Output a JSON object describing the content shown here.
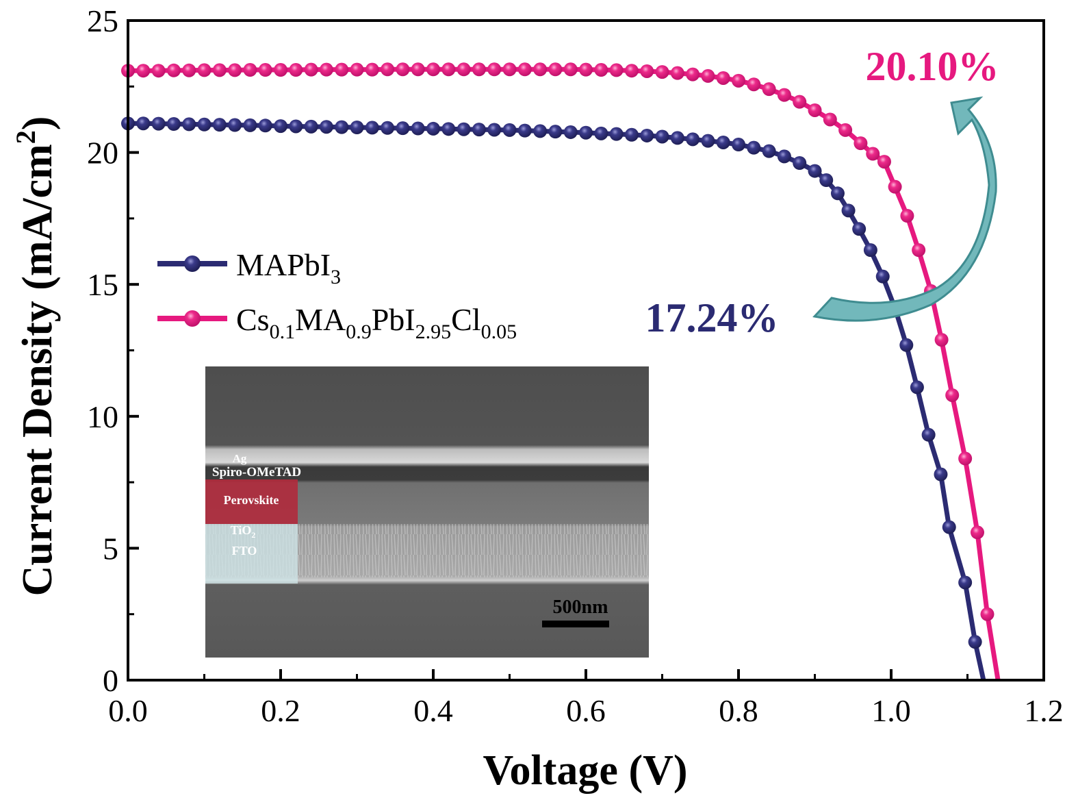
{
  "chart_data": {
    "type": "line",
    "xlabel": "Voltage (V)",
    "ylabel": "Current Density (mA/cm²)",
    "ylabel_parts": {
      "main": "Current Density (mA/cm",
      "sup": "2",
      "end": ")"
    },
    "xlim": [
      0,
      1.2
    ],
    "ylim": [
      0,
      25
    ],
    "xticks": [
      "0.0",
      "0.2",
      "0.4",
      "0.6",
      "0.8",
      "1.0",
      "1.2"
    ],
    "yticks": [
      "0",
      "5",
      "10",
      "15",
      "20",
      "25"
    ],
    "grid": false,
    "legend_placement": "center-left",
    "series": [
      {
        "name": "MAPbI3",
        "legend": [
          {
            "t": "MAPbI",
            "s": false
          },
          {
            "t": "3",
            "s": true
          }
        ],
        "color": "#2b2b72",
        "x": [
          0,
          0.02,
          0.04,
          0.06,
          0.08,
          0.1,
          0.12,
          0.14,
          0.16,
          0.18,
          0.2,
          0.22,
          0.24,
          0.26,
          0.28,
          0.3,
          0.32,
          0.34,
          0.36,
          0.38,
          0.4,
          0.42,
          0.44,
          0.46,
          0.48,
          0.5,
          0.52,
          0.54,
          0.56,
          0.58,
          0.6,
          0.62,
          0.64,
          0.66,
          0.68,
          0.7,
          0.72,
          0.74,
          0.76,
          0.78,
          0.8,
          0.82,
          0.84,
          0.86,
          0.88,
          0.9,
          0.915,
          0.93,
          0.944,
          0.958,
          0.973,
          0.989,
          1.005,
          1.02,
          1.034,
          1.049,
          1.065,
          1.076,
          1.097,
          1.11,
          1.121
        ],
        "y": [
          21.1,
          21.1,
          21.09,
          21.08,
          21.07,
          21.06,
          21.05,
          21.04,
          21.03,
          21.02,
          21.0,
          20.99,
          20.98,
          20.97,
          20.96,
          20.95,
          20.94,
          20.93,
          20.92,
          20.91,
          20.9,
          20.89,
          20.88,
          20.87,
          20.86,
          20.85,
          20.83,
          20.81,
          20.79,
          20.77,
          20.75,
          20.72,
          20.7,
          20.67,
          20.64,
          20.6,
          20.55,
          20.5,
          20.44,
          20.38,
          20.3,
          20.18,
          20.05,
          19.85,
          19.6,
          19.3,
          18.95,
          18.45,
          17.8,
          17.1,
          16.3,
          15.3,
          14.1,
          12.7,
          11.1,
          9.3,
          7.8,
          5.8,
          3.7,
          1.45,
          0
        ]
      },
      {
        "name": "Cs0.1MA0.9PbI2.95Cl0.05",
        "legend": [
          {
            "t": "Cs",
            "s": false
          },
          {
            "t": "0.1",
            "s": true
          },
          {
            "t": "MA",
            "s": false
          },
          {
            "t": "0.9",
            "s": true
          },
          {
            "t": "PbI",
            "s": false
          },
          {
            "t": "2.95",
            "s": true
          },
          {
            "t": "Cl",
            "s": false
          },
          {
            "t": "0.05",
            "s": true
          }
        ],
        "color": "#e6197f",
        "x": [
          0,
          0.02,
          0.04,
          0.06,
          0.08,
          0.1,
          0.12,
          0.14,
          0.16,
          0.18,
          0.2,
          0.22,
          0.24,
          0.26,
          0.28,
          0.3,
          0.32,
          0.34,
          0.36,
          0.38,
          0.4,
          0.42,
          0.44,
          0.46,
          0.48,
          0.5,
          0.52,
          0.54,
          0.56,
          0.58,
          0.6,
          0.62,
          0.64,
          0.66,
          0.68,
          0.7,
          0.72,
          0.74,
          0.76,
          0.78,
          0.8,
          0.82,
          0.84,
          0.86,
          0.88,
          0.9,
          0.92,
          0.94,
          0.96,
          0.976,
          0.991,
          1.005,
          1.021,
          1.036,
          1.052,
          1.066,
          1.08,
          1.097,
          1.113,
          1.126,
          1.14
        ],
        "y": [
          23.1,
          23.1,
          23.1,
          23.11,
          23.11,
          23.12,
          23.12,
          23.12,
          23.13,
          23.13,
          23.13,
          23.13,
          23.14,
          23.14,
          23.14,
          23.14,
          23.14,
          23.15,
          23.15,
          23.15,
          23.15,
          23.15,
          23.15,
          23.15,
          23.15,
          23.15,
          23.15,
          23.15,
          23.15,
          23.15,
          23.14,
          23.13,
          23.12,
          23.1,
          23.08,
          23.05,
          23.01,
          22.96,
          22.9,
          22.82,
          22.72,
          22.58,
          22.4,
          22.18,
          21.92,
          21.6,
          21.25,
          20.85,
          20.35,
          19.95,
          19.65,
          18.7,
          17.6,
          16.3,
          14.75,
          12.9,
          10.8,
          8.4,
          5.6,
          2.5,
          0
        ]
      }
    ],
    "annotations": [
      {
        "text": "17.24%",
        "color": "#2b2b72"
      },
      {
        "text": "20.10%",
        "color": "#e6197f"
      }
    ],
    "arrow_color": "#72b8bb"
  },
  "inset": {
    "labels": {
      "ag": "Ag",
      "spiro": "Spiro-OMeTAD",
      "perovskite": "Perovskite",
      "tio2_main": "TiO",
      "tio2_sub": "2",
      "fto": "FTO"
    },
    "scale_bar": "500nm"
  }
}
